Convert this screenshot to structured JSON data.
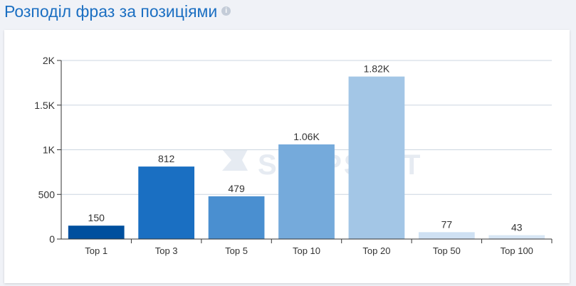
{
  "header": {
    "title": "Розподіл фраз за позиціями",
    "info_icon": "info-icon"
  },
  "watermark": "SERPSTAT",
  "chart_data": {
    "type": "bar",
    "title": "Розподіл фраз за позиціями",
    "categories": [
      "Top 1",
      "Top 3",
      "Top 5",
      "Top 10",
      "Top 20",
      "Top 50",
      "Top 100"
    ],
    "values": [
      150,
      812,
      479,
      1060,
      1820,
      77,
      43
    ],
    "data_labels": [
      "150",
      "812",
      "479",
      "1.06K",
      "1.82K",
      "77",
      "43"
    ],
    "colors": [
      "#004f9e",
      "#1a6fc2",
      "#4a8fd0",
      "#75aadb",
      "#a3c6e6",
      "#cfe1f3",
      "#d7e6f4"
    ],
    "yticks": [
      0,
      500,
      1000,
      1500,
      2000
    ],
    "ytick_labels": [
      "0",
      "500",
      "1K",
      "1.5K",
      "2K"
    ],
    "ylim": [
      0,
      2000
    ],
    "xlabel": "",
    "ylabel": "",
    "grid": true,
    "legend": "none"
  }
}
